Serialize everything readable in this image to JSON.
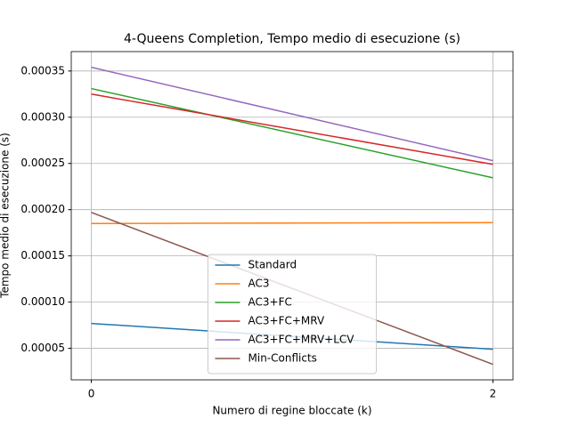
{
  "chart_data": {
    "type": "line",
    "title": "4-Queens Completion, Tempo medio di esecuzione (s)",
    "xlabel": "Numero di regine bloccate (k)",
    "ylabel": "Tempo medio di esecuzione (s)",
    "x": [
      0,
      2
    ],
    "series": [
      {
        "name": "Standard",
        "color": "#1f77b4",
        "values": [
          7.69e-05,
          4.9e-05
        ]
      },
      {
        "name": "AC3",
        "color": "#ff7f0e",
        "values": [
          0.000185,
          0.000186
        ]
      },
      {
        "name": "AC3+FC",
        "color": "#2ca02c",
        "values": [
          0.000331,
          0.0002345
        ]
      },
      {
        "name": "AC3+FC+MRV",
        "color": "#d62728",
        "values": [
          0.000325,
          0.000249
        ]
      },
      {
        "name": "AC3+FC+MRV+LCV",
        "color": "#9467bd",
        "values": [
          0.000354,
          0.000253
        ]
      },
      {
        "name": "Min-Conflicts",
        "color": "#8c564b",
        "values": [
          0.000197,
          3.27e-05
        ]
      }
    ],
    "xlim": [
      -0.1,
      2.1
    ],
    "xticks": [
      0,
      2
    ],
    "ylim": [
      1.59e-05,
      0.000371
    ],
    "yticks": [
      5e-05,
      {
        "value": 0.0001,
        "label": "0.00010"
      },
      0.00015,
      {
        "value": 0.0002,
        "label": "0.00020"
      },
      0.00025,
      {
        "value": 0.0003,
        "label": "0.00030"
      },
      0.00035
    ],
    "grid": true,
    "legend": "lower center"
  }
}
